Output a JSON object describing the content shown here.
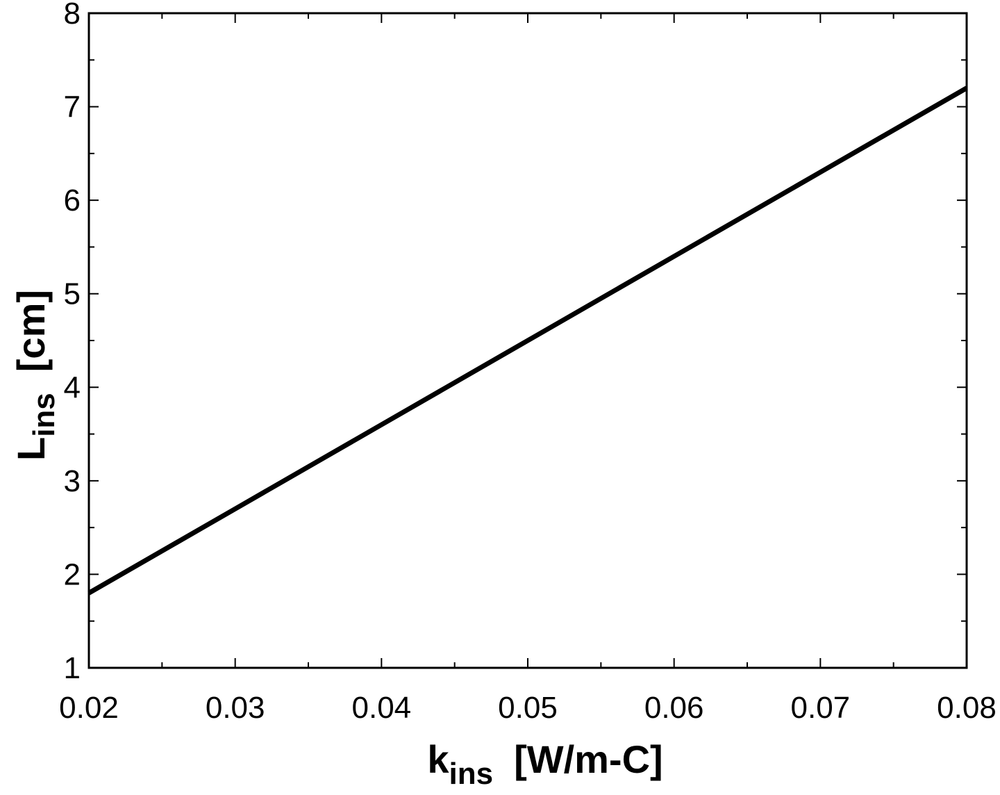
{
  "chart_data": {
    "type": "line",
    "title": "",
    "xlabel": {
      "main": "k",
      "sub": "ins",
      "unit": "[W/m-C]"
    },
    "ylabel": {
      "main": "L",
      "sub": "ins",
      "unit": "[cm]"
    },
    "xlim": [
      0.02,
      0.08
    ],
    "ylim": [
      1,
      8
    ],
    "x_ticks": [
      "0.02",
      "0.03",
      "0.04",
      "0.05",
      "0.06",
      "0.07",
      "0.08"
    ],
    "y_ticks": [
      "1",
      "2",
      "3",
      "4",
      "5",
      "6",
      "7",
      "8"
    ],
    "x_minor_step": 0.005,
    "y_minor_step": 0.5,
    "grid": false,
    "legend": "none",
    "series": [
      {
        "color": "#000000",
        "x": [
          0.02,
          0.03,
          0.04,
          0.05,
          0.06,
          0.07,
          0.08
        ],
        "y": [
          1.8,
          2.7,
          3.6,
          4.5,
          5.4,
          6.3,
          7.2
        ]
      }
    ]
  }
}
